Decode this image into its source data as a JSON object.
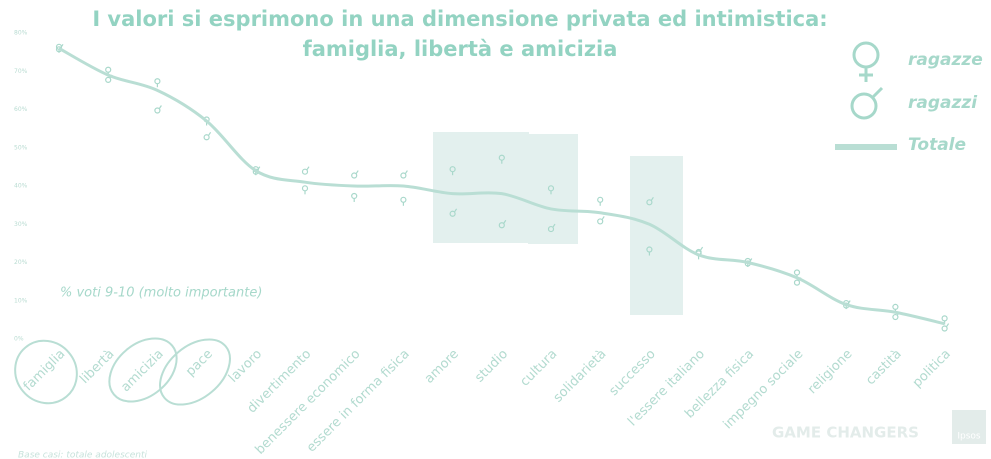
{
  "chart_data": {
    "type": "line",
    "title": "I valori si esprimono in una dimensione privata ed intimistica: famiglia, libertà e amicizia",
    "annotation": "% voti 9-10 (molto importante)",
    "brand": "GAME CHANGERS",
    "logo": "Ipsos",
    "footnote": "Base casi: totale adolescenti",
    "categories": [
      "famiglia",
      "libertà",
      "amicizia",
      "pace",
      "lavoro",
      "divertimento",
      "benessere economico",
      "essere in forma fisica",
      "amore",
      "studio",
      "cultura",
      "solidarietà",
      "successo",
      "l'essere italiano",
      "bellezza fisica",
      "impegno sociale",
      "religione",
      "castità",
      "politica"
    ],
    "series": [
      {
        "name": "ragazze",
        "style": "female",
        "color": "#a9d8cb",
        "values": [
          76,
          70,
          67,
          57,
          44,
          39,
          37,
          36,
          44,
          47,
          39,
          36,
          23,
          22,
          20,
          17,
          9,
          8,
          5
        ]
      },
      {
        "name": "ragazzi",
        "style": "male",
        "color": "#a9d8cb",
        "values": [
          76,
          68,
          60,
          53,
          44,
          44,
          43,
          43,
          33,
          30,
          29,
          31,
          36,
          23,
          20,
          15,
          9,
          6,
          3
        ]
      },
      {
        "name": "Totale",
        "style": "line",
        "color": "#b9ded4",
        "values": [
          76,
          69,
          65,
          57,
          44,
          41,
          40,
          40,
          38,
          38,
          34,
          33,
          30,
          22,
          20,
          16,
          9,
          7,
          4
        ]
      }
    ],
    "ylim": [
      0,
      80
    ],
    "yticks": [
      {
        "value": 0,
        "label": "0%"
      },
      {
        "value": 10,
        "label": "10%"
      },
      {
        "value": 20,
        "label": "20%"
      },
      {
        "value": 30,
        "label": "30%"
      },
      {
        "value": 40,
        "label": "40%"
      },
      {
        "value": 50,
        "label": "50%"
      },
      {
        "value": 60,
        "label": "60%"
      },
      {
        "value": 70,
        "label": "70%"
      },
      {
        "value": 80,
        "label": "80%"
      }
    ]
  }
}
